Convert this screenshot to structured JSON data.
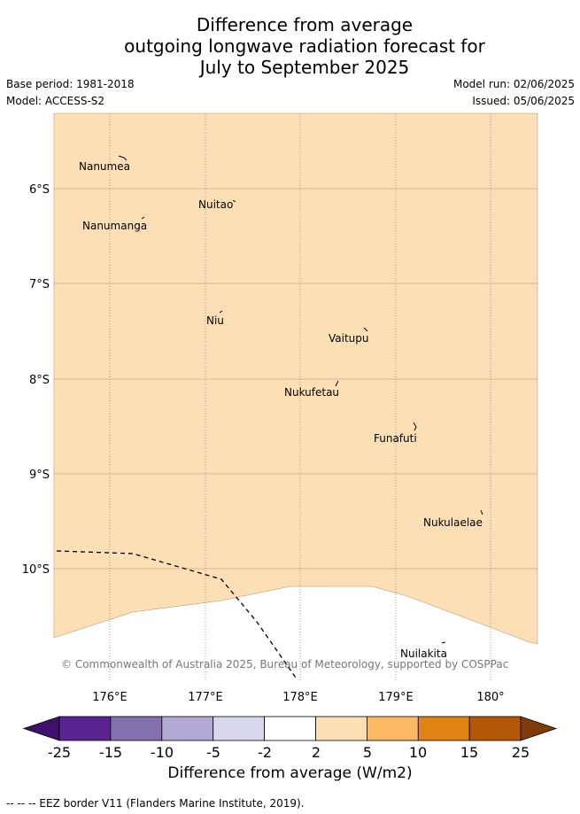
{
  "title": {
    "line1": "Difference from average",
    "line2": "outgoing longwave radiation forecast for",
    "line3": "July to September 2025"
  },
  "meta": {
    "base_period": "Base period: 1981-2018",
    "model": "Model: ACCESS-S2",
    "model_run": "Model run: 02/06/2025",
    "issued": "Issued: 05/06/2025"
  },
  "map": {
    "fill_color": "#fddfb5",
    "lat_labels": [
      "6°S",
      "7°S",
      "8°S",
      "9°S",
      "10°S"
    ],
    "lon_labels": [
      "176°E",
      "177°E",
      "178°E",
      "179°E",
      "180°"
    ],
    "places": [
      {
        "name": "Nanumea"
      },
      {
        "name": "Nuitao"
      },
      {
        "name": "Nanumanga"
      },
      {
        "name": "Niu"
      },
      {
        "name": "Vaitupu"
      },
      {
        "name": "Nukufetau"
      },
      {
        "name": "Funafuti"
      },
      {
        "name": "Nukulaelae"
      },
      {
        "name": "Nuilakita"
      }
    ],
    "copyright": "© Commonwealth of Australia 2025, Bureau of Meteorology, supported by COSPPac"
  },
  "colorbar": {
    "ticks": [
      "-25",
      "-15",
      "-10",
      "-5",
      "-2",
      "2",
      "5",
      "10",
      "15",
      "25"
    ],
    "colors": [
      "#3f0f6e",
      "#5a2590",
      "#8372ae",
      "#b2aad2",
      "#d9d8ea",
      "#ffffff",
      "#fddfb5",
      "#fdb863",
      "#e08214",
      "#b35806",
      "#7f3b08"
    ],
    "title": "Difference from average (W/m2)"
  },
  "legend": "--  --  -- EEZ border V11 (Flanders Marine Institute, 2019)."
}
